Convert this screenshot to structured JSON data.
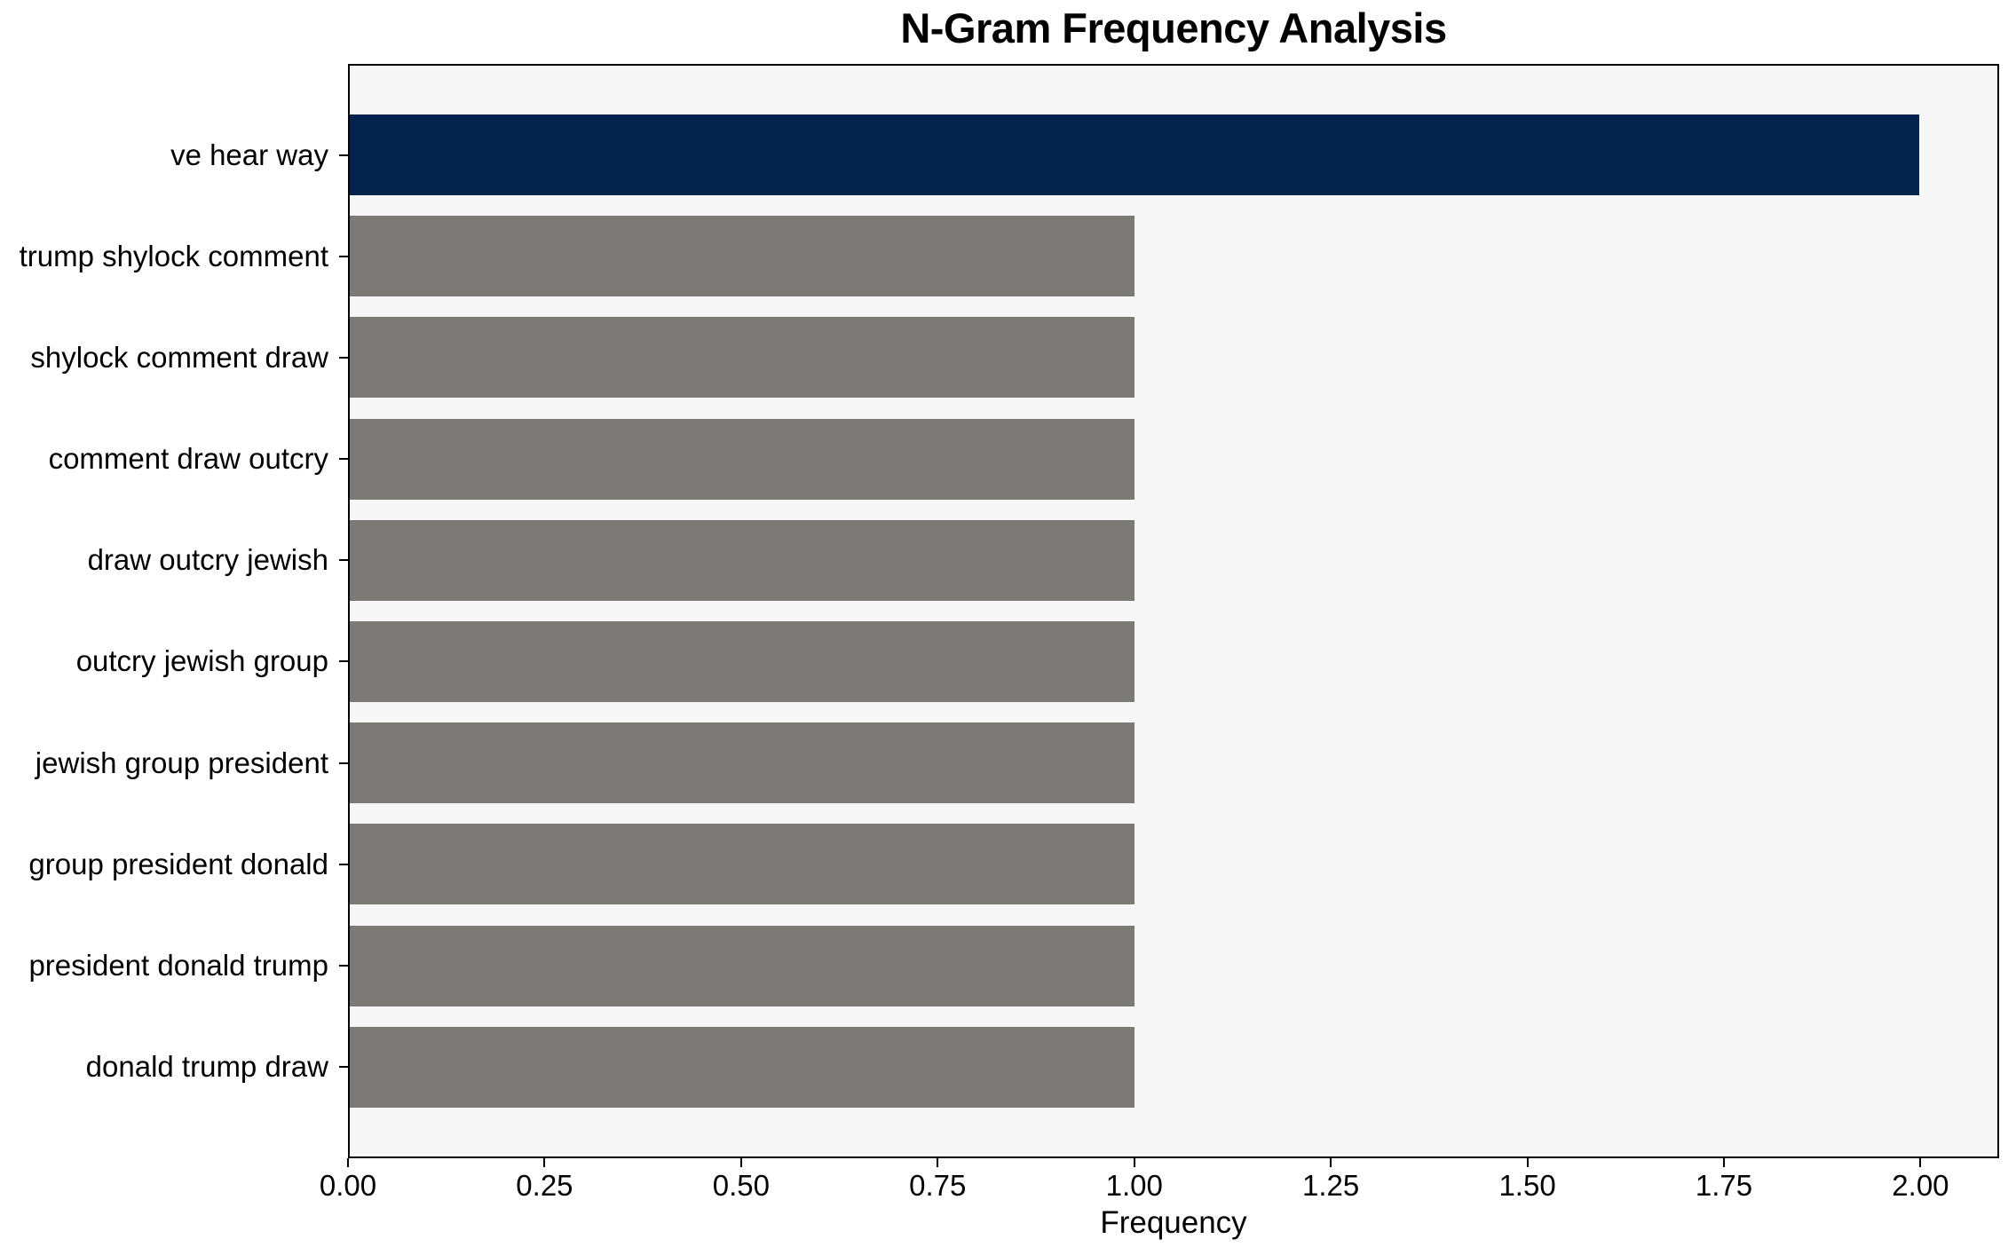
{
  "title": "N-Gram Frequency Analysis",
  "colors": {
    "highlight_bar": "#03234C",
    "default_bar": "#7B7A76",
    "plot_background": "#F7F7F7",
    "figure_background": "#FFFFFF",
    "spine": "#000000",
    "text": "#000000"
  },
  "chart_data": {
    "type": "bar",
    "orientation": "horizontal",
    "title": "N-Gram Frequency Analysis",
    "xlabel": "Frequency",
    "ylabel": "",
    "xlim": [
      0,
      2.1
    ],
    "grid": false,
    "legend": "none",
    "categories": [
      "ve hear way",
      "trump shylock comment",
      "shylock comment draw",
      "comment draw outcry",
      "draw outcry jewish",
      "outcry jewish group",
      "jewish group president",
      "group president donald",
      "president donald trump",
      "donald trump draw"
    ],
    "values": [
      2,
      1,
      1,
      1,
      1,
      1,
      1,
      1,
      1,
      1
    ],
    "bar_colors": [
      "#03234C",
      "#7B7A76",
      "#7B7A76",
      "#7B7A76",
      "#7B7A76",
      "#7B7A76",
      "#7B7A76",
      "#7B7A76",
      "#7B7A76",
      "#7B7A76"
    ],
    "x_ticks": [
      0,
      0.25,
      0.5,
      0.75,
      1.0,
      1.25,
      1.5,
      1.75,
      2.0
    ],
    "x_tick_labels": [
      "0.00",
      "0.25",
      "0.50",
      "0.75",
      "1.00",
      "1.25",
      "1.50",
      "1.75",
      "2.00"
    ]
  }
}
